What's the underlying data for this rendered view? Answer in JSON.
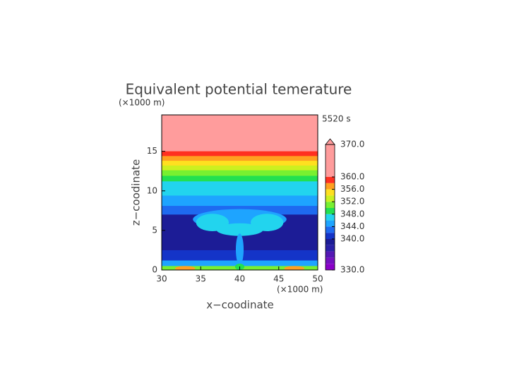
{
  "chart_data": {
    "type": "contour",
    "title": "Equivalent potential temerature",
    "x_label": "x−coodinate",
    "y_label": "z−coodinate",
    "x_unit": "(×1000 m)",
    "y_unit": "(×1000 m)",
    "annotation": "5520 s",
    "xlim": [
      30,
      50
    ],
    "xticks": [
      30,
      35,
      40,
      45,
      50
    ],
    "ylim": [
      0,
      19.6
    ],
    "yticks": [
      0,
      5,
      10,
      15
    ],
    "layers": {
      "bottom": [
        15,
        14.4,
        13.8,
        13.2,
        12.6,
        11.9,
        11.2,
        10.5,
        9.4,
        8.1,
        7,
        2.5,
        1.2,
        0.5,
        0
      ],
      "top": [
        19.6,
        15,
        14.4,
        13.8,
        13.2,
        12.6,
        11.9,
        11.2,
        10.5,
        9.4,
        8.1,
        7,
        2.5,
        1.2,
        0.5
      ],
      "values": [
        365,
        359,
        357,
        355,
        353,
        351,
        349,
        347,
        346,
        344,
        343,
        339,
        341,
        345,
        350
      ]
    },
    "patches": {
      "x": [
        40,
        36.5,
        43.5,
        40,
        40,
        33,
        47,
        40
      ],
      "z": [
        6.4,
        6.0,
        6.0,
        5.1,
        2.6,
        0.2,
        0.2,
        0.4
      ],
      "rx": [
        6,
        2.1,
        2.1,
        3,
        0.5,
        1.3,
        1.3,
        0.6
      ],
      "rz": [
        1.3,
        1.1,
        1.1,
        0.8,
        2.0,
        0.3,
        0.3,
        0.4
      ],
      "values": [
        345,
        347,
        347,
        347,
        344,
        356,
        356,
        349
      ]
    },
    "colorbar": {
      "levels": [
        330,
        332,
        334,
        336,
        338,
        340,
        342,
        344,
        346,
        348,
        350,
        352,
        354,
        356,
        358,
        360,
        370
      ],
      "colors": [
        "#8a00c8",
        "#7410c0",
        "#5418b4",
        "#2a20a8",
        "#1c1c96",
        "#1434c8",
        "#1e6af0",
        "#1ea4ff",
        "#22d4ee",
        "#22e050",
        "#78f030",
        "#ccf020",
        "#ffe020",
        "#ffa020",
        "#ff3020",
        "#ff9c9c"
      ],
      "ticks": [
        {
          "value": 330,
          "label": "330.0"
        },
        {
          "value": 340,
          "label": "340.0"
        },
        {
          "value": 344,
          "label": "344.0"
        },
        {
          "value": 348,
          "label": "348.0"
        },
        {
          "value": 352,
          "label": "352.0"
        },
        {
          "value": 356,
          "label": "356.0"
        },
        {
          "value": 360,
          "label": "360.0"
        },
        {
          "value": 370,
          "label": "370.0"
        }
      ],
      "extend": "max"
    }
  }
}
